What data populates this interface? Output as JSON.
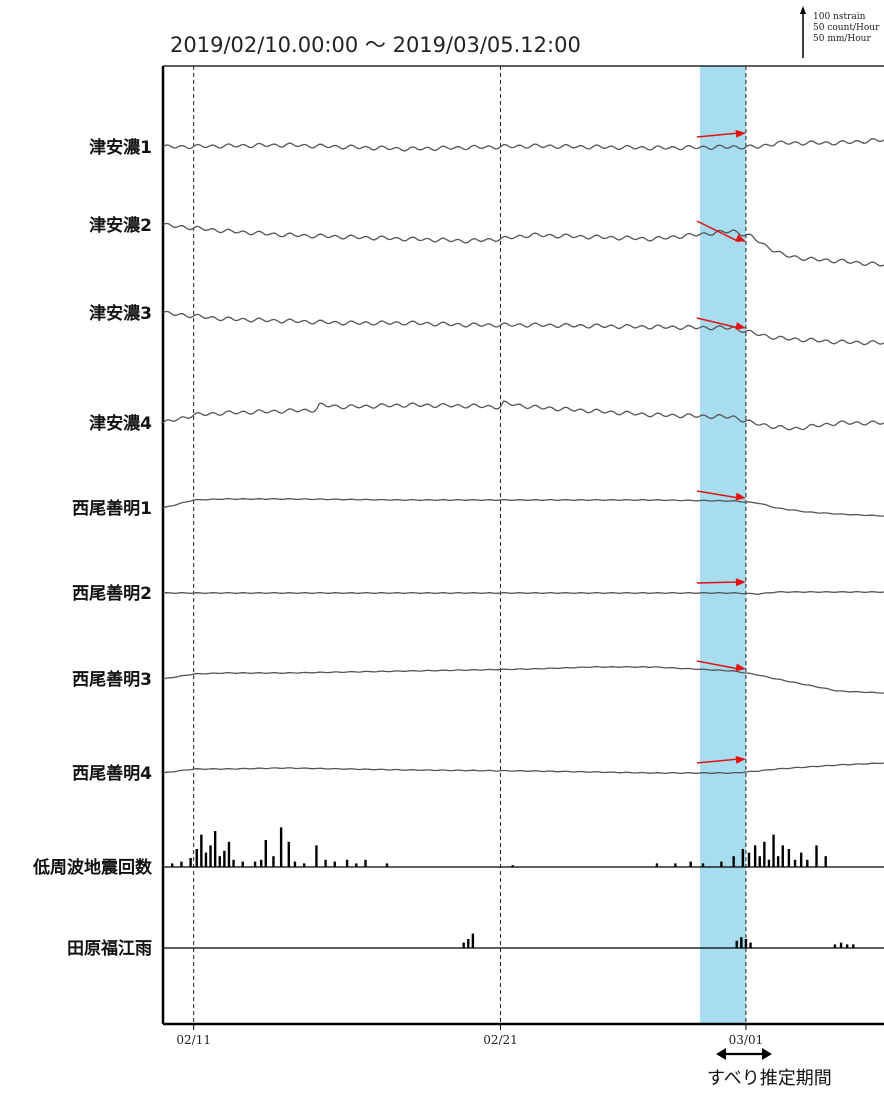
{
  "chart_data": {
    "type": "line",
    "title": "2019/02/10.00:00 ～ 2019/03/05.12:00",
    "scale_legend": [
      "100 nstrain",
      "50 count/Hour",
      "50 mm/Hour"
    ],
    "x_ticks": [
      "02/11",
      "02/21",
      "03/01"
    ],
    "x_range": [
      "2019/02/10 00:00",
      "2019/03/05 12:00"
    ],
    "highlight": {
      "label": "すべり推定期間",
      "start": "2019/02/27 12:00",
      "end": "2019/03/01 00:00"
    },
    "series": [
      {
        "name": "津安濃1",
        "kind": "line",
        "color": "#555555",
        "x": [
          0,
          4,
          8,
          12,
          16,
          18.6,
          19.4,
          20,
          22,
          23.5
        ],
        "values": [
          0,
          2,
          -2,
          1,
          -1,
          0,
          0,
          4,
          4,
          7
        ],
        "arrow": true
      },
      {
        "name": "津安濃2",
        "kind": "line",
        "color": "#555555",
        "x": [
          0,
          2,
          4,
          6,
          8,
          10,
          11,
          12,
          14,
          16,
          18.6,
          19.2,
          19.6,
          20.2,
          21,
          22,
          23.5
        ],
        "values": [
          0,
          -6,
          -10,
          -12,
          -14,
          -16,
          -14,
          -10,
          -12,
          -14,
          -6,
          -12,
          -20,
          -30,
          -34,
          -36,
          -40
        ],
        "arrow": true
      },
      {
        "name": "津安濃3",
        "kind": "line",
        "color": "#555555",
        "x": [
          0,
          2,
          4,
          6,
          8,
          10,
          12,
          14,
          16,
          18.6,
          19.2,
          20,
          21,
          22,
          23.5
        ],
        "values": [
          0,
          -6,
          -8,
          -10,
          -10,
          -12,
          -12,
          -13,
          -14,
          -15,
          -20,
          -25,
          -27,
          -29,
          -30
        ],
        "arrow": true
      },
      {
        "name": "津安濃4",
        "kind": "line",
        "color": "#555555",
        "x": [
          0,
          1,
          2,
          4,
          5,
          5.1,
          6,
          8,
          10,
          11,
          11.1,
          12,
          14,
          16,
          18.6,
          19.2,
          20,
          20.5,
          21,
          22,
          23.5
        ],
        "values": [
          0,
          8,
          10,
          12,
          13,
          18,
          16,
          18,
          17,
          16,
          20,
          16,
          12,
          8,
          6,
          0,
          -4,
          -6,
          -4,
          0,
          0
        ],
        "arrow": false
      },
      {
        "name": "西尾善明1",
        "kind": "line",
        "color": "#555555",
        "x": [
          0,
          1,
          2,
          4,
          8,
          12,
          16,
          18.6,
          19.4,
          20,
          21,
          22,
          23.5
        ],
        "values": [
          0,
          8,
          9,
          9,
          8,
          8,
          8,
          7,
          5,
          0,
          -4,
          -6,
          -8
        ],
        "arrow": true
      },
      {
        "name": "西尾善明2",
        "kind": "line",
        "color": "#555555",
        "x": [
          0,
          4,
          8,
          12,
          16,
          18.6,
          19.4,
          20,
          22,
          23.5
        ],
        "values": [
          0,
          0,
          0,
          0,
          0,
          0,
          -1,
          1,
          1,
          1
        ],
        "arrow": true
      },
      {
        "name": "西尾善明3",
        "kind": "line",
        "color": "#555555",
        "x": [
          0,
          1,
          2,
          4,
          8,
          12,
          14,
          16,
          18.6,
          19.4,
          20,
          21,
          22,
          23.5
        ],
        "values": [
          0,
          5,
          6,
          6,
          8,
          10,
          12,
          12,
          8,
          4,
          0,
          -6,
          -12,
          -14
        ],
        "arrow": true
      },
      {
        "name": "西尾善明4",
        "kind": "line",
        "color": "#555555",
        "x": [
          0,
          1,
          2,
          4,
          8,
          12,
          16,
          18.6,
          19.4,
          20,
          22,
          23.5
        ],
        "values": [
          0,
          4,
          4,
          5,
          3,
          2,
          0,
          0,
          2,
          4,
          8,
          10
        ],
        "arrow": true
      },
      {
        "name": "低周波地震回数",
        "kind": "bar",
        "color": "#000000",
        "x": [
          0.3,
          0.6,
          0.9,
          1.1,
          1.25,
          1.4,
          1.55,
          1.7,
          1.85,
          2.0,
          2.15,
          2.3,
          2.6,
          3.0,
          3.2,
          3.35,
          3.6,
          3.85,
          4.1,
          4.3,
          4.6,
          5.0,
          5.3,
          5.6,
          6.0,
          6.3,
          6.6,
          7.3,
          11.4,
          16.1,
          16.7,
          17.2,
          17.6,
          18.2,
          18.6,
          18.9,
          19.1,
          19.3,
          19.45,
          19.6,
          19.75,
          19.9,
          20.05,
          20.2,
          20.4,
          20.6,
          20.8,
          21.0,
          21.3,
          21.6
        ],
        "values": [
          2,
          3,
          5,
          10,
          18,
          8,
          12,
          20,
          6,
          9,
          14,
          4,
          3,
          3,
          4,
          15,
          6,
          22,
          14,
          3,
          2,
          12,
          4,
          3,
          4,
          2,
          4,
          2,
          1,
          2,
          2,
          3,
          2,
          3,
          6,
          10,
          8,
          12,
          6,
          14,
          4,
          18,
          6,
          12,
          10,
          4,
          8,
          4,
          12,
          6
        ]
      },
      {
        "name": "田原福江雨",
        "kind": "bar",
        "color": "#000000",
        "x": [
          9.8,
          9.95,
          10.1,
          18.7,
          18.85,
          19.0,
          19.15,
          21.9,
          22.1,
          22.3,
          22.5
        ],
        "values": [
          3,
          5,
          8,
          4,
          6,
          5,
          3,
          2,
          3,
          2,
          2
        ]
      }
    ]
  }
}
